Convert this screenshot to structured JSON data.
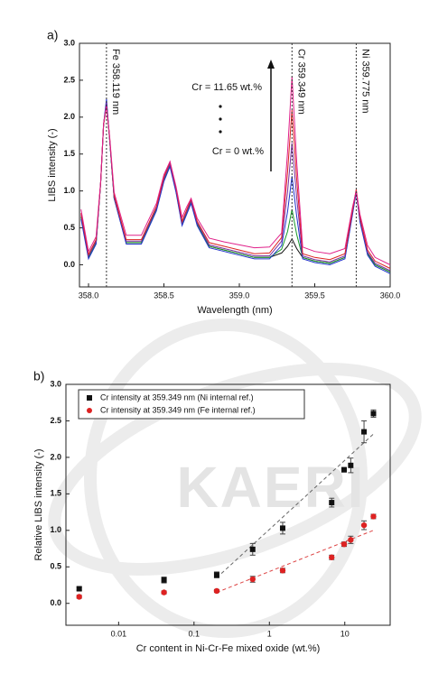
{
  "chart_data": [
    {
      "type": "line",
      "panel": "a)",
      "x_label": "Wavelength (nm)",
      "y_label": "LIBS intensity  (-)",
      "x": [
        357.95,
        358.0,
        358.05,
        358.08,
        358.1,
        358.119,
        358.14,
        358.17,
        358.25,
        358.35,
        358.45,
        358.5,
        358.54,
        358.58,
        358.62,
        358.65,
        358.68,
        358.72,
        358.8,
        358.9,
        359.0,
        359.1,
        359.2,
        359.28,
        359.32,
        359.349,
        359.38,
        359.42,
        359.5,
        359.6,
        359.7,
        359.75,
        359.775,
        359.8,
        359.85,
        359.9,
        360.0
      ],
      "series": [
        {
          "color": "#111111",
          "values": [
            0.65,
            0.1,
            0.3,
            1.1,
            1.9,
            2.2,
            1.7,
            0.9,
            0.3,
            0.3,
            0.75,
            1.15,
            1.35,
            1.0,
            0.55,
            0.7,
            0.85,
            0.55,
            0.25,
            0.2,
            0.15,
            0.1,
            0.1,
            0.16,
            0.25,
            0.35,
            0.22,
            0.1,
            0.05,
            0.02,
            0.1,
            0.7,
            1.0,
            0.6,
            0.15,
            0.0,
            -0.1
          ]
        },
        {
          "color": "#1a9a2a",
          "values": [
            0.65,
            0.1,
            0.3,
            1.1,
            1.9,
            2.2,
            1.7,
            0.9,
            0.3,
            0.3,
            0.75,
            1.15,
            1.35,
            1.0,
            0.55,
            0.7,
            0.85,
            0.55,
            0.25,
            0.2,
            0.15,
            0.1,
            0.1,
            0.21,
            0.45,
            0.75,
            0.41,
            0.1,
            0.05,
            0.02,
            0.1,
            0.7,
            1.0,
            0.6,
            0.15,
            0.0,
            -0.1
          ]
        },
        {
          "color": "#2233cc",
          "values": [
            0.62,
            0.08,
            0.28,
            1.1,
            1.9,
            2.25,
            1.7,
            0.9,
            0.28,
            0.28,
            0.73,
            1.13,
            1.33,
            0.98,
            0.53,
            0.68,
            0.83,
            0.53,
            0.23,
            0.18,
            0.13,
            0.08,
            0.08,
            0.26,
            0.72,
            1.2,
            0.66,
            0.08,
            0.03,
            0.0,
            0.08,
            0.68,
            0.98,
            0.58,
            0.13,
            -0.02,
            -0.12
          ]
        },
        {
          "color": "#7a2fa0",
          "values": [
            0.68,
            0.12,
            0.32,
            1.1,
            1.9,
            2.2,
            1.7,
            0.92,
            0.32,
            0.32,
            0.77,
            1.17,
            1.37,
            1.02,
            0.57,
            0.72,
            0.87,
            0.57,
            0.27,
            0.22,
            0.17,
            0.12,
            0.12,
            0.32,
            0.99,
            1.65,
            0.91,
            0.12,
            0.07,
            0.04,
            0.12,
            0.72,
            1.0,
            0.62,
            0.17,
            0.02,
            -0.08
          ]
        },
        {
          "color": "#dd2222",
          "values": [
            0.7,
            0.14,
            0.34,
            1.1,
            1.9,
            2.15,
            1.72,
            0.94,
            0.34,
            0.34,
            0.79,
            1.19,
            1.39,
            1.04,
            0.59,
            0.74,
            0.89,
            0.59,
            0.3,
            0.25,
            0.2,
            0.15,
            0.16,
            0.37,
            1.26,
            2.1,
            1.16,
            0.15,
            0.1,
            0.07,
            0.15,
            0.74,
            1.02,
            0.64,
            0.2,
            0.05,
            -0.05
          ]
        },
        {
          "color": "#e0208a",
          "values": [
            0.75,
            0.18,
            0.38,
            1.12,
            1.92,
            2.15,
            1.74,
            0.98,
            0.4,
            0.4,
            0.83,
            1.22,
            1.4,
            1.06,
            0.64,
            0.78,
            0.9,
            0.63,
            0.36,
            0.31,
            0.27,
            0.23,
            0.24,
            0.43,
            1.53,
            2.55,
            1.4,
            0.24,
            0.18,
            0.15,
            0.22,
            0.78,
            1.0,
            0.68,
            0.26,
            0.1,
            0.0
          ]
        }
      ],
      "annotations": [
        {
          "text": "Fe 358.119 nm",
          "x": 358.119
        },
        {
          "text": "Cr 359.349 nm",
          "x": 359.349
        },
        {
          "text": "Ni 359.775 nm",
          "x": 359.775
        }
      ],
      "notes": [
        "Cr = 11.65 wt.%",
        "Cr = 0 wt.%"
      ],
      "xlim": [
        357.94,
        360.0
      ],
      "xticks": [
        {
          "value": 358,
          "label": "358.0"
        },
        358.5,
        {
          "value": 359,
          "label": "359.0"
        },
        359.5,
        {
          "value": 360,
          "label": "360.0"
        }
      ],
      "ylim": [
        -0.3,
        3.0
      ],
      "yticks": [
        {
          "value": 0,
          "label": "0.0"
        },
        0.5,
        {
          "value": 1,
          "label": "1.0"
        },
        1.5,
        {
          "value": 2,
          "label": "2.0"
        },
        2.5,
        {
          "value": 3,
          "label": "3.0"
        }
      ],
      "grid": false
    },
    {
      "type": "scatter",
      "panel": "b)",
      "watermark": "KAERI",
      "x_label": "Cr content in Ni-Cr-Fe mixed oxide (wt.%)",
      "y_label": "Relative LIBS intensity  (-)",
      "log_x": true,
      "legend": "upper left",
      "x": [
        0.003,
        0.04,
        0.2,
        0.6,
        1.5,
        6.7,
        9.8,
        12,
        18,
        24
      ],
      "series": [
        {
          "name": "Cr intensity at 359.349 nm (Ni internal ref.)",
          "color": "#111111",
          "marker": "square",
          "values": [
            0.2,
            0.32,
            0.39,
            0.74,
            1.03,
            1.38,
            1.83,
            1.89,
            2.35,
            2.6
          ],
          "errors": [
            0.02,
            0.04,
            0.04,
            0.08,
            0.08,
            0.06,
            0.03,
            0.1,
            0.15,
            0.05
          ]
        },
        {
          "name": "Cr intensity at 359.349 nm (Fe internal ref.)",
          "color": "#dd2222",
          "marker": "circle",
          "values": [
            0.09,
            0.15,
            0.17,
            0.33,
            0.45,
            0.63,
            0.81,
            0.87,
            1.07,
            1.19
          ],
          "errors": [
            0.02,
            0.02,
            0.02,
            0.04,
            0.03,
            0.03,
            0.03,
            0.05,
            0.06,
            0.03
          ]
        }
      ],
      "fits": [
        {
          "color": "#666666",
          "x": [
            0.2,
            24
          ],
          "y": [
            0.35,
            2.32
          ]
        },
        {
          "color": "#dd4444",
          "x": [
            0.2,
            24
          ],
          "y": [
            0.15,
            1.0
          ]
        }
      ],
      "xlim": [
        0.002,
        40
      ],
      "xticks": [
        0.01,
        0.1,
        1,
        10
      ],
      "ylim": [
        -0.3,
        3.0
      ],
      "yticks": [
        {
          "value": 0,
          "label": "0.0"
        },
        0.5,
        {
          "value": 1,
          "label": "1.0"
        },
        1.5,
        {
          "value": 2,
          "label": "2.0"
        },
        2.5,
        {
          "value": 3,
          "label": "3.0"
        }
      ],
      "grid": false
    }
  ]
}
